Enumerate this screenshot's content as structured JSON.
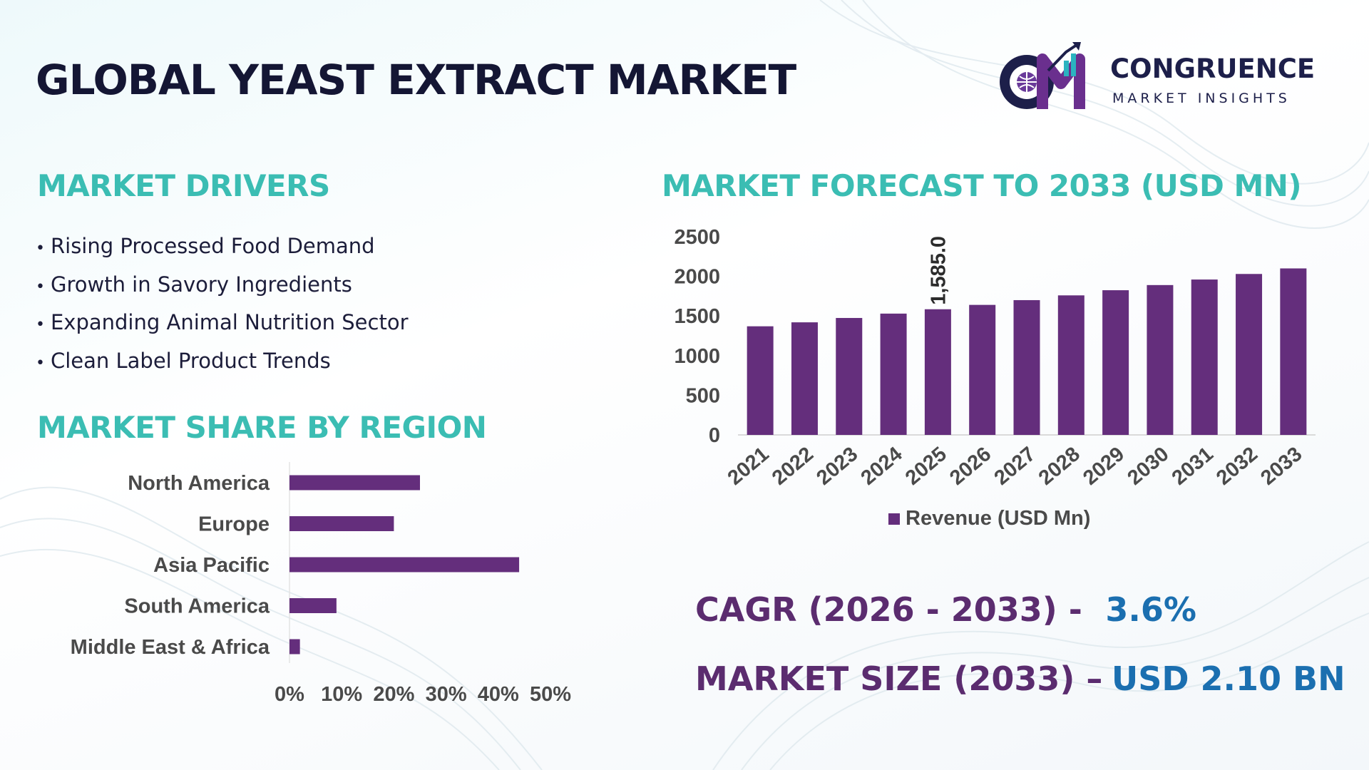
{
  "header": {
    "title": "GLOBAL YEAST EXTRACT MARKET",
    "logo_name": "CONGRUENCE",
    "logo_tagline": "MARKET INSIGHTS"
  },
  "drivers": {
    "title": "MARKET DRIVERS",
    "items": [
      "Rising Processed Food Demand",
      "Growth in Savory Ingredients",
      "Expanding Animal Nutrition Sector",
      "Clean Label Product Trends"
    ]
  },
  "region_section": {
    "title": "MARKET SHARE BY REGION"
  },
  "forecast_section": {
    "title": "MARKET FORECAST TO 2033 (USD MN)"
  },
  "stats": {
    "cagr_label": "CAGR (2026 - 2033) -",
    "cagr_value": "3.6%",
    "size_label": "MARKET SIZE (2033) –",
    "size_value": "USD 2.10 BN"
  },
  "colors": {
    "bar": "#642e7c",
    "teal": "#3bbdb3",
    "navy": "#141634",
    "purple_text": "#5b2c6f",
    "blue_text": "#1b6fb0"
  },
  "chart_data": [
    {
      "type": "bar",
      "orientation": "vertical",
      "categories": [
        "2021",
        "2022",
        "2023",
        "2024",
        "2025",
        "2026",
        "2027",
        "2028",
        "2029",
        "2030",
        "2031",
        "2032",
        "2033"
      ],
      "series": [
        {
          "name": "Revenue (USD Mn)",
          "values": [
            1370,
            1420,
            1475,
            1530,
            1585,
            1640,
            1700,
            1760,
            1825,
            1890,
            1960,
            2030,
            2100
          ]
        }
      ],
      "data_labels": [
        {
          "category": "2025",
          "text": "1,585.0"
        }
      ],
      "yticks": [
        "0",
        "500",
        "1000",
        "1500",
        "2000",
        "2500"
      ],
      "ylim": [
        0,
        2500
      ],
      "legend": "bottom",
      "grid": false
    },
    {
      "type": "bar",
      "orientation": "horizontal",
      "categories": [
        "North America",
        "Europe",
        "Asia Pacific",
        "South America",
        "Middle East & Africa"
      ],
      "values": [
        25,
        20,
        44,
        9,
        2
      ],
      "xticks": [
        "0%",
        "10%",
        "20%",
        "30%",
        "40%",
        "50%"
      ],
      "xlim": [
        0,
        50
      ],
      "grid": false
    }
  ]
}
